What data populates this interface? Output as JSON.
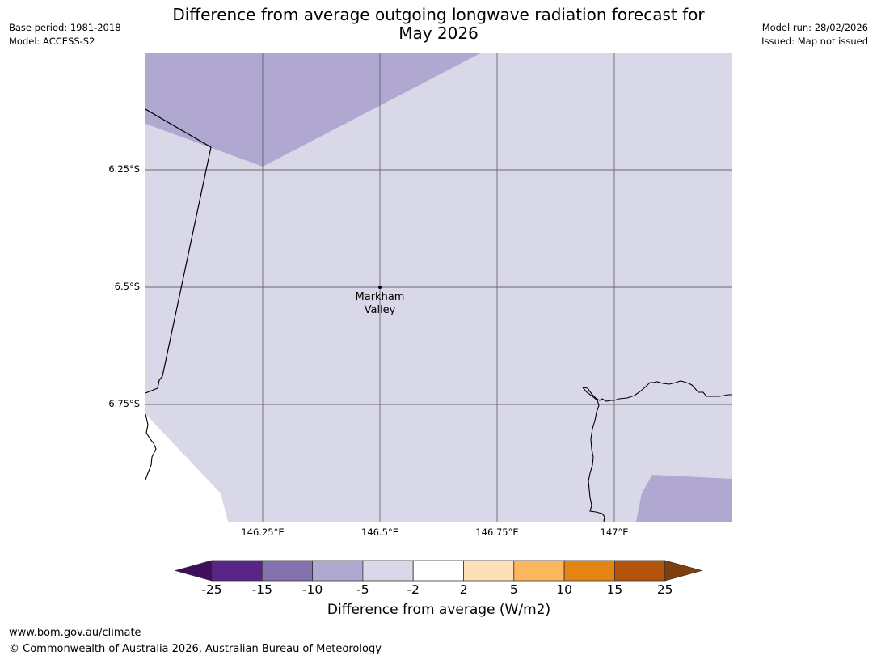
{
  "header": {
    "title_line1": "Difference from average outgoing longwave radiation forecast for",
    "title_line2": "May 2026",
    "base_period": "Base period: 1981-2018",
    "model": "Model: ACCESS-S2",
    "model_run": "Model run: 28/02/2026",
    "issued": "Issued: Map not issued"
  },
  "map": {
    "lat_labels": [
      "6.25°S",
      "6.5°S",
      "6.75°S"
    ],
    "lon_labels": [
      "146.25°E",
      "146.5°E",
      "146.75°E",
      "147°E"
    ],
    "place": {
      "name_line1": "Markham",
      "name_line2": "Valley"
    }
  },
  "legend": {
    "ticks": [
      "-25",
      "-15",
      "-10",
      "-5",
      "-2",
      "2",
      "5",
      "10",
      "15",
      "25"
    ],
    "label": "Difference from average (W/m2)",
    "colors": [
      "#3f0f5e",
      "#5a2488",
      "#8372ae",
      "#b0a8d1",
      "#d8d8e9",
      "#ffffff",
      "#fde0b6",
      "#fbb65e",
      "#e48415",
      "#b45309",
      "#7f3f0c"
    ]
  },
  "footer": {
    "url": "www.bom.gov.au/climate",
    "copyright": "© Commonwealth of Australia 2026, Australian Bureau of Meteorology"
  }
}
